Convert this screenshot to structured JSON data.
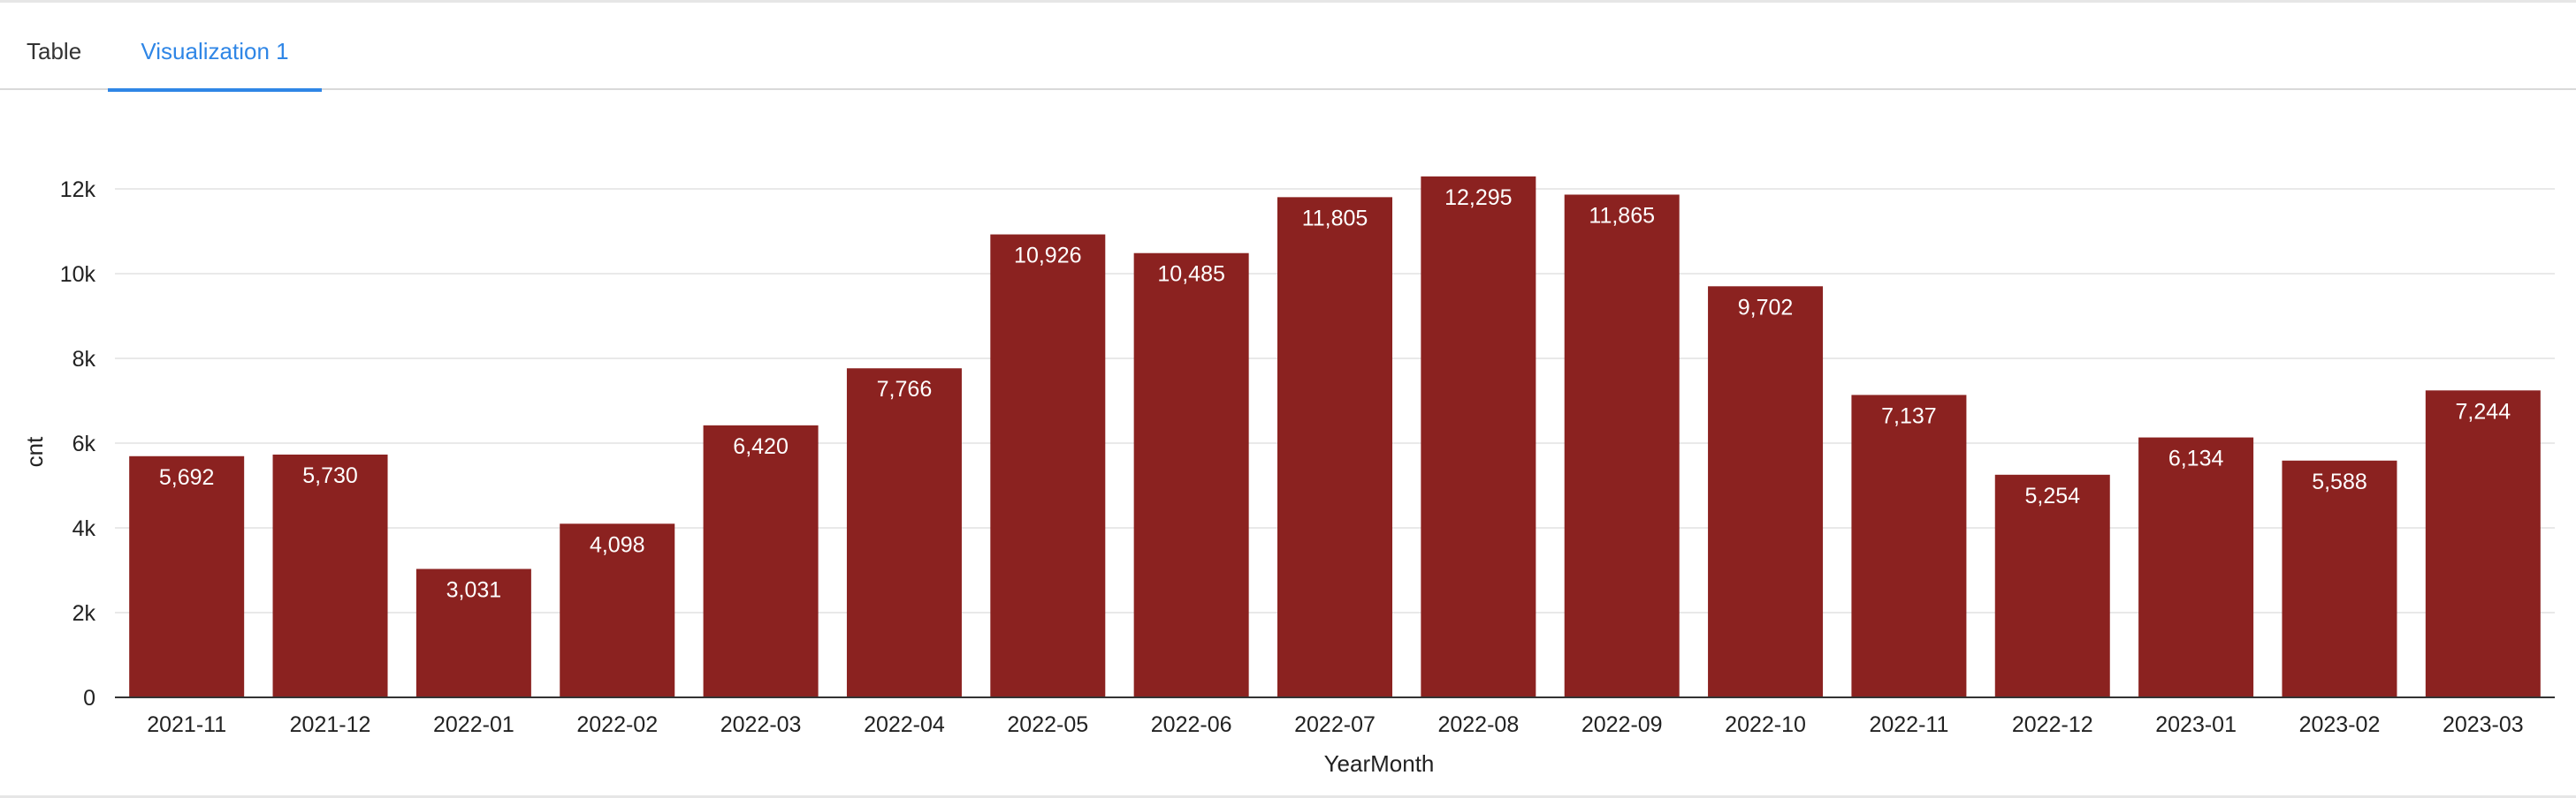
{
  "tabs": [
    {
      "label": "Table",
      "active": false
    },
    {
      "label": "Visualization 1",
      "active": true
    }
  ],
  "colors": {
    "bar": "#8b2220",
    "accent": "#2f86e6"
  },
  "chart_data": {
    "type": "bar",
    "xlabel": "YearMonth",
    "ylabel": "cnt",
    "ylim": [
      0,
      12000
    ],
    "yticks": [
      0,
      2000,
      4000,
      6000,
      8000,
      10000,
      12000
    ],
    "ytick_labels": [
      "0",
      "2k",
      "4k",
      "6k",
      "8k",
      "10k",
      "12k"
    ],
    "grid": true,
    "categories": [
      "2021-11",
      "2021-12",
      "2022-01",
      "2022-02",
      "2022-03",
      "2022-04",
      "2022-05",
      "2022-06",
      "2022-07",
      "2022-08",
      "2022-09",
      "2022-10",
      "2022-11",
      "2022-12",
      "2023-01",
      "2023-02",
      "2023-03"
    ],
    "values": [
      5692,
      5730,
      3031,
      4098,
      6420,
      7766,
      10926,
      10485,
      11805,
      12295,
      11865,
      9702,
      7137,
      5254,
      6134,
      5588,
      7244
    ],
    "value_labels": [
      "5,692",
      "5,730",
      "3,031",
      "4,098",
      "6,420",
      "7,766",
      "10,926",
      "10,485",
      "11,805",
      "12,295",
      "11,865",
      "9,702",
      "7,137",
      "5,254",
      "6,134",
      "5,588",
      "7,244"
    ]
  }
}
